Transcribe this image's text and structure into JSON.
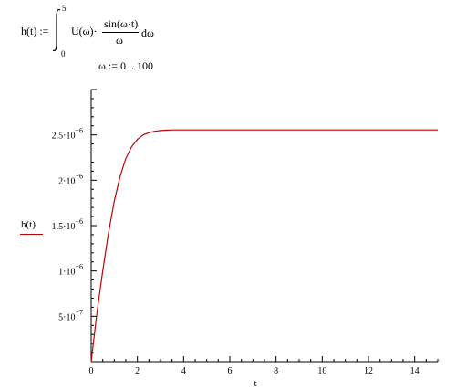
{
  "worksheet": {
    "definition": {
      "lhs": "h(t) :=",
      "upper_limit": "5",
      "lower_limit": "0",
      "integrand_factor": "U(ω)·",
      "numerator": "sin(ω·t)",
      "denominator": "ω",
      "differential": "dω"
    },
    "range_variable": "ω := 0 .. 100"
  },
  "chart_data": {
    "type": "line",
    "xlabel": "t",
    "ylabel": "h(t)",
    "xlim": [
      0,
      15
    ],
    "ylim": [
      0,
      3e-06
    ],
    "x_ticks": [
      0,
      2,
      4,
      6,
      8,
      10,
      12,
      14
    ],
    "x_tick_labels": [
      "0",
      "2",
      "4",
      "6",
      "8",
      "10",
      "12",
      "14"
    ],
    "y_ticks": [
      5e-07,
      1e-06,
      1.5e-06,
      2e-06,
      2.5e-06
    ],
    "y_tick_labels": [
      {
        "mantissa": "5·10",
        "exponent": "−7"
      },
      {
        "mantissa": "1·10",
        "exponent": "−6"
      },
      {
        "mantissa": "1.5·10",
        "exponent": "−6"
      },
      {
        "mantissa": "2·10",
        "exponent": "−6"
      },
      {
        "mantissa": "2.5·10",
        "exponent": "−6"
      }
    ],
    "grid": false,
    "series": [
      {
        "color": "#c00000",
        "x": [
          0,
          0.25,
          0.5,
          0.75,
          1.0,
          1.25,
          1.5,
          1.75,
          2.0,
          2.25,
          2.5,
          2.75,
          3.0,
          3.25,
          3.5,
          4.0,
          5.0,
          6.0,
          8.0,
          10.0,
          12.0,
          14.0,
          15.0
        ],
        "y": [
          0,
          5.4e-07,
          1e-06,
          1.42e-06,
          1.77e-06,
          2.04e-06,
          2.24e-06,
          2.37e-06,
          2.45e-06,
          2.5e-06,
          2.525e-06,
          2.54e-06,
          2.548e-06,
          2.552e-06,
          2.555e-06,
          2.555e-06,
          2.555e-06,
          2.555e-06,
          2.555e-06,
          2.555e-06,
          2.555e-06,
          2.555e-06,
          2.555e-06
        ]
      }
    ]
  }
}
